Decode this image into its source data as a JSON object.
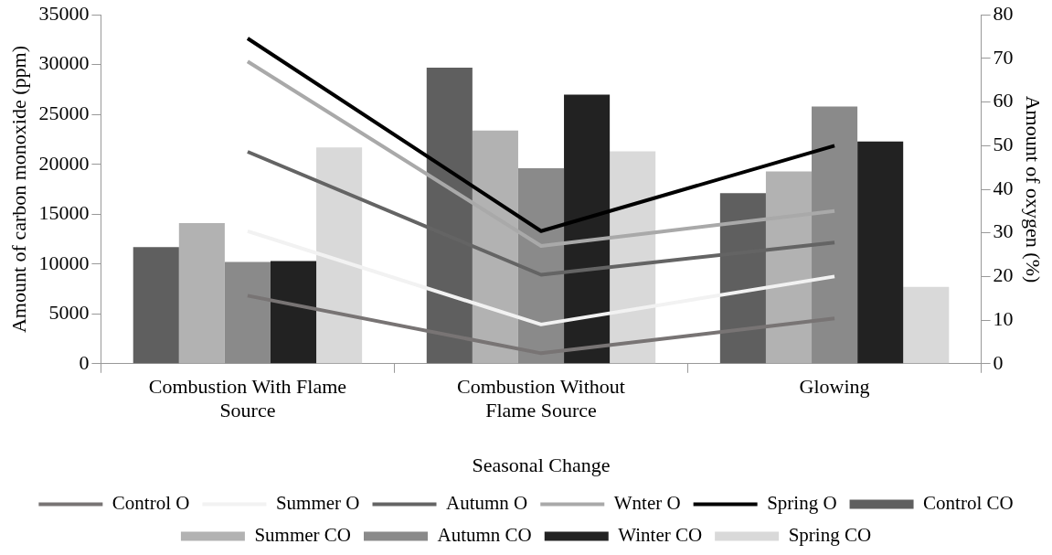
{
  "chart_data": {
    "type": "bar",
    "xlabel": "Seasonal Change",
    "ylabel": "Amount of carbon monoxide (ppm)",
    "y2label": "Amount of oxygen (%)",
    "categories": [
      "Combustion With Flame Source",
      "Combustion Without Flame Source",
      "Glowing"
    ],
    "series": [
      {
        "name": "Control CO",
        "color": "#5f5f5f",
        "values": [
          11700,
          29700,
          17100
        ]
      },
      {
        "name": "Summer CO",
        "color": "#b2b2b2",
        "values": [
          14100,
          23400,
          19300
        ]
      },
      {
        "name": "Autumn CO",
        "color": "#8a8a8a",
        "values": [
          10200,
          19600,
          25800
        ]
      },
      {
        "name": "Winter CO",
        "color": "#222222",
        "values": [
          10300,
          27000,
          22300
        ]
      },
      {
        "name": "Spring CO",
        "color": "#d9d9d9",
        "values": [
          21700,
          21300,
          7700
        ]
      },
      {
        "name": "Control O",
        "type": "line",
        "axis": "y2",
        "color": "#787474",
        "values": [
          15.6,
          2.4,
          10.4
        ]
      },
      {
        "name": "Summer O",
        "type": "line",
        "axis": "y2",
        "color": "#f2f2f2",
        "values": [
          30.4,
          9,
          20
        ]
      },
      {
        "name": "Autumn O",
        "type": "line",
        "axis": "y2",
        "color": "#646464",
        "values": [
          48.6,
          20.4,
          27.8
        ]
      },
      {
        "name": "Wnter O",
        "type": "line",
        "axis": "y2",
        "color": "#a9a9a9",
        "values": [
          69.3,
          27,
          35
        ]
      },
      {
        "name": "Spring O",
        "type": "line",
        "axis": "y2",
        "color": "#000000",
        "values": [
          74.6,
          30.4,
          50
        ]
      }
    ],
    "ylim": [
      0,
      35000
    ],
    "yticks": [
      0,
      5000,
      10000,
      15000,
      20000,
      25000,
      30000,
      35000
    ],
    "y2lim": [
      0,
      80
    ],
    "y2ticks": [
      0,
      10,
      20,
      30,
      40,
      50,
      60,
      70,
      80
    ],
    "grid": false,
    "legend": "bottom",
    "marker": "none",
    "line_style": "solid"
  }
}
